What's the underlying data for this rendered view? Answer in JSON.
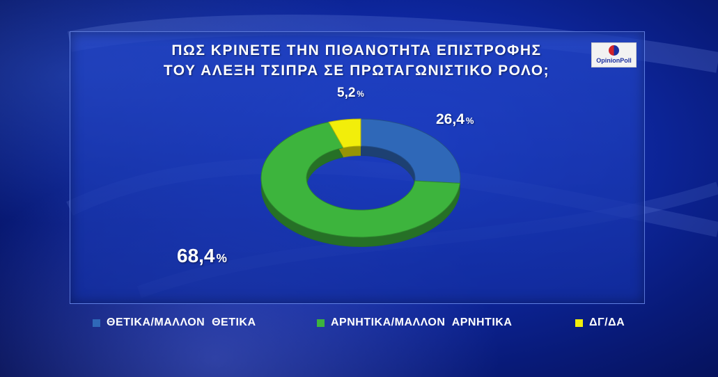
{
  "title_line1": "ΠΩΣ ΚΡΙΝΕΤΕ ΤΗΝ ΠΙΘΑΝΟΤΗΤΑ ΕΠΙΣΤΡΟΦΗΣ",
  "title_line2": "ΤΟΥ ΑΛΕΞΗ ΤΣΙΠΡΑ ΣΕ ΠΡΩΤΑΓΩΝΙΣΤΙΚΟ ΡΟΛΟ;",
  "logo_text": "OpinionPoll",
  "colors": {
    "positive": "#2f68b8",
    "negative": "#3db43d",
    "dk": "#f2ee0a"
  },
  "chart_data": {
    "type": "pie",
    "title": "ΠΩΣ ΚΡΙΝΕΤΕ ΤΗΝ ΠΙΘΑΝΟΤΗΤΑ ΕΠΙΣΤΡΟΦΗΣ ΤΟΥ ΑΛΕΞΗ ΤΣΙΠΡΑ ΣΕ ΠΡΩΤΑΓΩΝΙΣΤΙΚΟ ΡΟΛΟ;",
    "categories": [
      "ΘΕΤΙΚΑ/ΜΑΛΛΟΝ ΘΕΤΙΚΑ",
      "ΑΡΝΗΤΙΚΑ/ΜΑΛΛΟΝ ΑΡΝΗΤΙΚΑ",
      "ΔΓ/ΔΑ"
    ],
    "values": [
      26.4,
      68.4,
      5.2
    ],
    "labels": [
      "26,4",
      "68,4",
      "5,2"
    ],
    "unit": "%",
    "legend": "bottom"
  },
  "legend": [
    {
      "label": "ΘΕΤΙΚΑ/ΜΑΛΛΟΝ  ΘΕΤΙΚΑ"
    },
    {
      "label": "ΑΡΝΗΤΙΚΑ/ΜΑΛΛΟΝ  ΑΡΝΗΤΙΚΑ"
    },
    {
      "label": "ΔΓ/ΔΑ"
    }
  ]
}
